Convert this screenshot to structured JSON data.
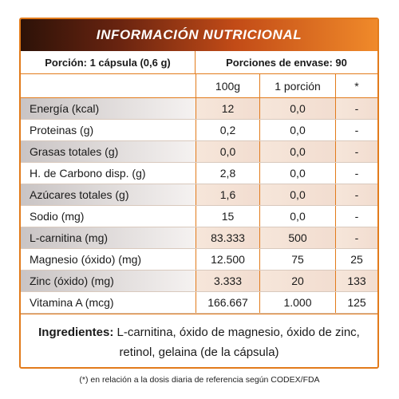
{
  "title": "INFORMACIÓN NUTRICIONAL",
  "serving": {
    "portion": "Porción: 1 cápsula (0,6 g)",
    "servings_per_container": "Porciones de envase: 90"
  },
  "columns": [
    "100g",
    "1 porción",
    "*"
  ],
  "rows": [
    {
      "name": "Energía (kcal)",
      "per100": "12",
      "portion": "0,0",
      "dv": "-"
    },
    {
      "name": "Proteinas (g)",
      "per100": "0,2",
      "portion": "0,0",
      "dv": "-"
    },
    {
      "name": "Grasas totales (g)",
      "per100": "0,0",
      "portion": "0,0",
      "dv": "-"
    },
    {
      "name": "H. de Carbono disp. (g)",
      "per100": "2,8",
      "portion": "0,0",
      "dv": "-"
    },
    {
      "name": "Azúcares totales (g)",
      "per100": "1,6",
      "portion": "0,0",
      "dv": "-"
    },
    {
      "name": "Sodio (mg)",
      "per100": "15",
      "portion": "0,0",
      "dv": "-"
    },
    {
      "name": "L-carnitina (mg)",
      "per100": "83.333",
      "portion": "500",
      "dv": "-"
    },
    {
      "name": "Magnesio (óxido) (mg)",
      "per100": "12.500",
      "portion": "75",
      "dv": "25"
    },
    {
      "name": "Zinc (óxido) (mg)",
      "per100": "3.333",
      "portion": "20",
      "dv": "133"
    },
    {
      "name": "Vitamina A (mcg)",
      "per100": "166.667",
      "portion": "1.000",
      "dv": "125"
    }
  ],
  "ingredients": {
    "label": "Ingredientes:",
    "text": " L-carnitina, óxido de magnesio, óxido de zinc, retinol, gelaina (de la cápsula)"
  },
  "footnote": "(*) en relación a la dosis diaria de referencia según CODEX/FDA",
  "colors": {
    "accent": "#e27b1b",
    "title_dark": "#2d1208",
    "title_light": "#f08a2a"
  }
}
